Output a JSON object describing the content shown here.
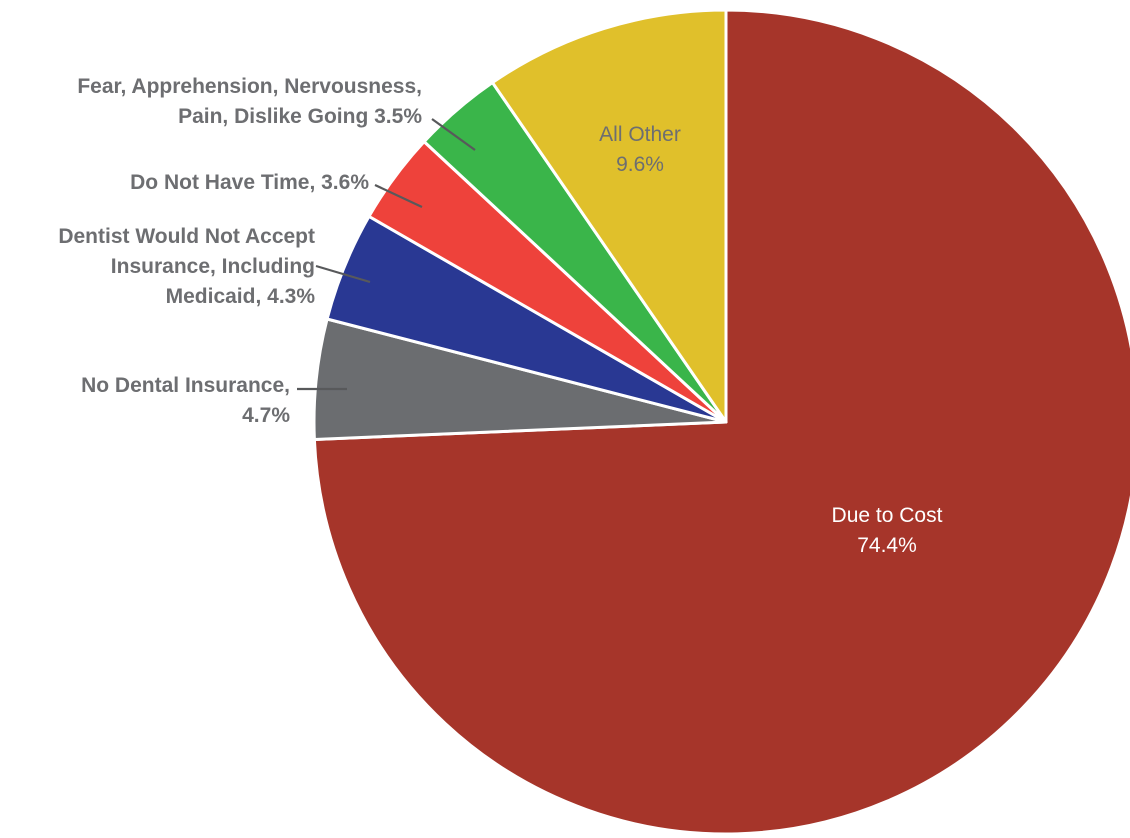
{
  "chart_data": {
    "type": "pie",
    "start_angle_deg": 0,
    "direction": "clockwise",
    "slices": [
      {
        "name": "Due to Cost",
        "value": 74.4,
        "color": "#a6352a",
        "label_lines": [
          "Due to Cost",
          "74.4%"
        ],
        "label_color": "#ffffff"
      },
      {
        "name": "No Dental Insurance",
        "value": 4.7,
        "color": "#6b6d70",
        "label_lines": [
          "No Dental Insurance,",
          "4.7%"
        ],
        "label_color": "#6d6e71"
      },
      {
        "name": "Dentist Would Not Accept Insurance, Including Medicaid",
        "value": 4.3,
        "color": "#293893",
        "label_lines": [
          "Dentist Would Not Accept",
          "Insurance, Including",
          "Medicaid, 4.3%"
        ],
        "label_color": "#6d6e71"
      },
      {
        "name": "Do Not Have Time",
        "value": 3.6,
        "color": "#ee423b",
        "label_lines": [
          "Do Not Have Time, 3.6%"
        ],
        "label_color": "#6d6e71"
      },
      {
        "name": "Fear, Apprehension, Nervousness, Pain, Dislike Going",
        "value": 3.5,
        "color": "#3ab54a",
        "label_lines": [
          "Fear, Apprehension, Nervousness,",
          "Pain, Dislike Going 3.5%"
        ],
        "label_color": "#6d6e71"
      },
      {
        "name": "All Other",
        "value": 9.6,
        "color": "#e0c02b",
        "label_lines": [
          "All Other",
          "9.6%"
        ],
        "label_color": "#6d6e71"
      }
    ]
  }
}
